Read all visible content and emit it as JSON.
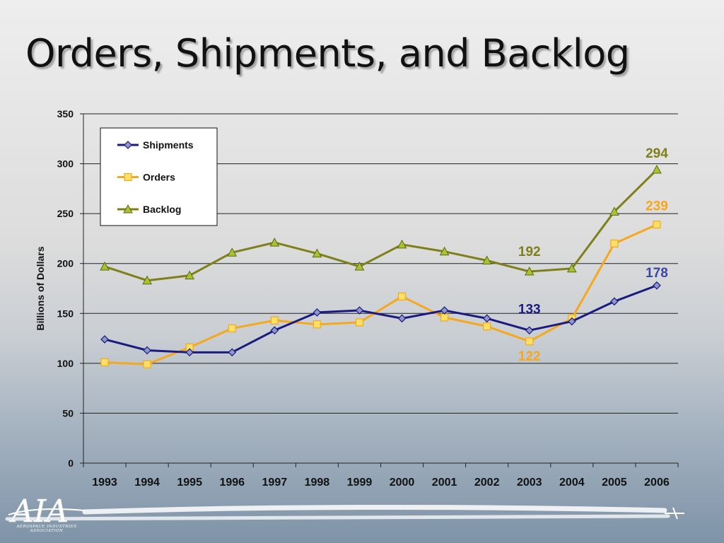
{
  "slide": {
    "title": "Orders, Shipments, and Backlog",
    "logo_text": "AIA",
    "logo_caption": "AEROSPACE INDUSTRIES ASSOCIATION"
  },
  "chart_data": {
    "type": "line",
    "title": "Orders, Shipments, and Backlog",
    "xlabel": "",
    "ylabel": "Billions of Dollars",
    "ylim": [
      0,
      350
    ],
    "yticks": [
      0,
      50,
      100,
      150,
      200,
      250,
      300,
      350
    ],
    "categories": [
      "1993",
      "1994",
      "1995",
      "1996",
      "1997",
      "1998",
      "1999",
      "2000",
      "2001",
      "2002",
      "2003",
      "2004",
      "2005",
      "2006"
    ],
    "grid": true,
    "legend_position": "top-left",
    "series": [
      {
        "name": "Shipments",
        "color": "#1a1a80",
        "marker": "diamond",
        "values": [
          124,
          113,
          111,
          111,
          133,
          151,
          153,
          145,
          153,
          145,
          133,
          142,
          162,
          178
        ]
      },
      {
        "name": "Orders",
        "color": "#f5a81c",
        "marker": "square",
        "values": [
          101,
          99,
          116,
          135,
          143,
          139,
          141,
          167,
          146,
          137,
          122,
          145,
          220,
          239
        ]
      },
      {
        "name": "Backlog",
        "color": "#7f7f1a",
        "marker": "triangle",
        "values": [
          197,
          183,
          188,
          211,
          221,
          210,
          197,
          219,
          212,
          203,
          192,
          195,
          252,
          294
        ]
      }
    ],
    "annotations": [
      {
        "series": "Backlog",
        "category": "2003",
        "text": "192",
        "color": "#7f7f1a"
      },
      {
        "series": "Shipments",
        "category": "2003",
        "text": "133",
        "color": "#1a1a80"
      },
      {
        "series": "Orders",
        "category": "2003",
        "text": "122",
        "color": "#f5a81c"
      },
      {
        "series": "Backlog",
        "category": "2006",
        "text": "294",
        "color": "#7f7f1a"
      },
      {
        "series": "Orders",
        "category": "2006",
        "text": "239",
        "color": "#f5a81c"
      },
      {
        "series": "Shipments",
        "category": "2006",
        "text": "178",
        "color": "#3a45a6"
      }
    ]
  }
}
